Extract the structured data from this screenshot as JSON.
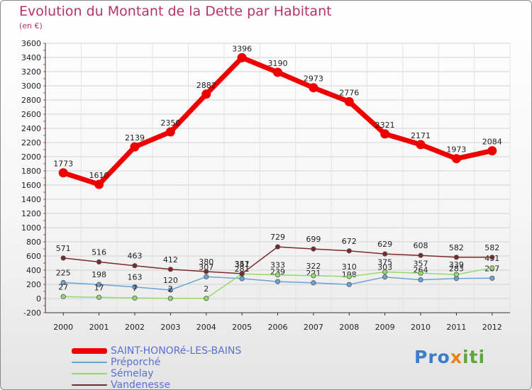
{
  "title": "Evolution du Montant de la Dette par Habitant",
  "subtitle": "(en €)",
  "logo": {
    "part1": "Pro",
    "part2": "x",
    "part3": "iti"
  },
  "chart_data": {
    "type": "line",
    "x": [
      2000,
      2001,
      2002,
      2003,
      2004,
      2005,
      2006,
      2007,
      2008,
      2009,
      2010,
      2011,
      2012
    ],
    "ylim": [
      -200,
      3600
    ],
    "yticks": [
      -200,
      0,
      200,
      400,
      600,
      800,
      1000,
      1200,
      1400,
      1600,
      1800,
      2000,
      2200,
      2400,
      2600,
      2800,
      3000,
      3200,
      3400,
      3600
    ],
    "grid": true,
    "legend": "bottom-left",
    "series": [
      {
        "name": "SAINT-HONORé-LES-BAINS",
        "color": "#ee0000",
        "values": [
          1773,
          1610,
          2139,
          2350,
          2882,
          3396,
          3190,
          2973,
          2776,
          2321,
          2171,
          1973,
          2084
        ]
      },
      {
        "name": "Préporché",
        "color": "#6ba3d6",
        "values": [
          225,
          198,
          163,
          120,
          307,
          281,
          239,
          221,
          198,
          303,
          264,
          283,
          287
        ]
      },
      {
        "name": "Sémelay",
        "color": "#93d96b",
        "values": [
          27,
          17,
          7,
          2,
          2,
          347,
          333,
          322,
          310,
          375,
          357,
          339,
          431
        ]
      },
      {
        "name": "Vandenesse",
        "color": "#7a2a2a",
        "values": [
          571,
          516,
          463,
          412,
          380,
          351,
          729,
          699,
          672,
          629,
          608,
          582,
          582
        ]
      }
    ]
  }
}
